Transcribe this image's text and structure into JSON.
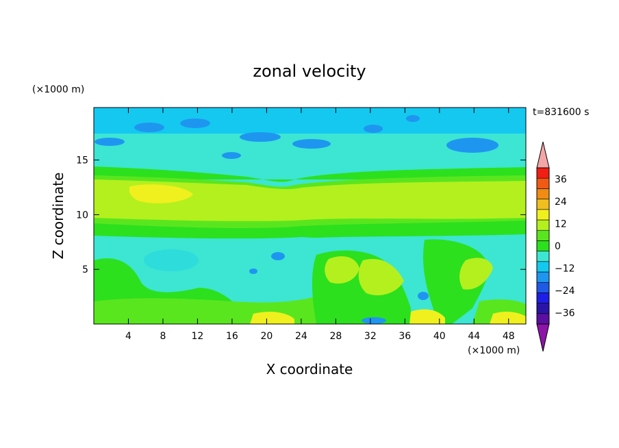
{
  "chart_data": {
    "type": "heatmap",
    "title": "zonal velocity",
    "xlabel": "X coordinate",
    "ylabel": "Z coordinate",
    "x_unit_label": "(×1000 m)",
    "y_unit_label": "(×1000 m)",
    "time_label": "t=831600 s",
    "xlim": [
      0,
      50
    ],
    "ylim": [
      0,
      19.8
    ],
    "x_ticks": [
      "4",
      "8",
      "12",
      "16",
      "20",
      "24",
      "28",
      "32",
      "36",
      "40",
      "44",
      "48"
    ],
    "y_ticks": [
      "5",
      "10",
      "15"
    ],
    "colorbar": {
      "tick_labels": [
        "36",
        "24",
        "12",
        "0",
        "-12",
        "-24",
        "-36"
      ],
      "levels": [
        -42,
        -36,
        -30,
        -24,
        -18,
        -12,
        -6,
        0,
        6,
        12,
        18,
        24,
        30,
        36,
        42
      ],
      "colors": [
        "#5a0fa0",
        "#2a14a8",
        "#1e1ee6",
        "#1e5ae6",
        "#1e96f0",
        "#14c8f0",
        "#3ce6d2",
        "#2ce01e",
        "#5ae61e",
        "#b4f01e",
        "#f0f01e",
        "#f0be1e",
        "#f08c14",
        "#f05a14",
        "#f01e14"
      ],
      "under_color": "#8c14a8",
      "over_color": "#f4a6a6"
    },
    "field_description_rows": [
      {
        "z_range": [
          17.5,
          19.8
        ],
        "approx_value": -9,
        "note": "cyan with blue patches near -15"
      },
      {
        "z_range": [
          14.5,
          17.5
        ],
        "approx_value": -6,
        "note": "light cyan/aqua"
      },
      {
        "z_range": [
          10.5,
          14.5
        ],
        "approx_value": 12,
        "note": "yellow-green jet, yellow core ~15 at x 5-10"
      },
      {
        "z_range": [
          8,
          10.5
        ],
        "approx_value": 5,
        "note": "green"
      },
      {
        "z_range": [
          0,
          8
        ],
        "approx_value": -3,
        "note": "mixed aqua and green cells, yellow near surface"
      }
    ]
  }
}
